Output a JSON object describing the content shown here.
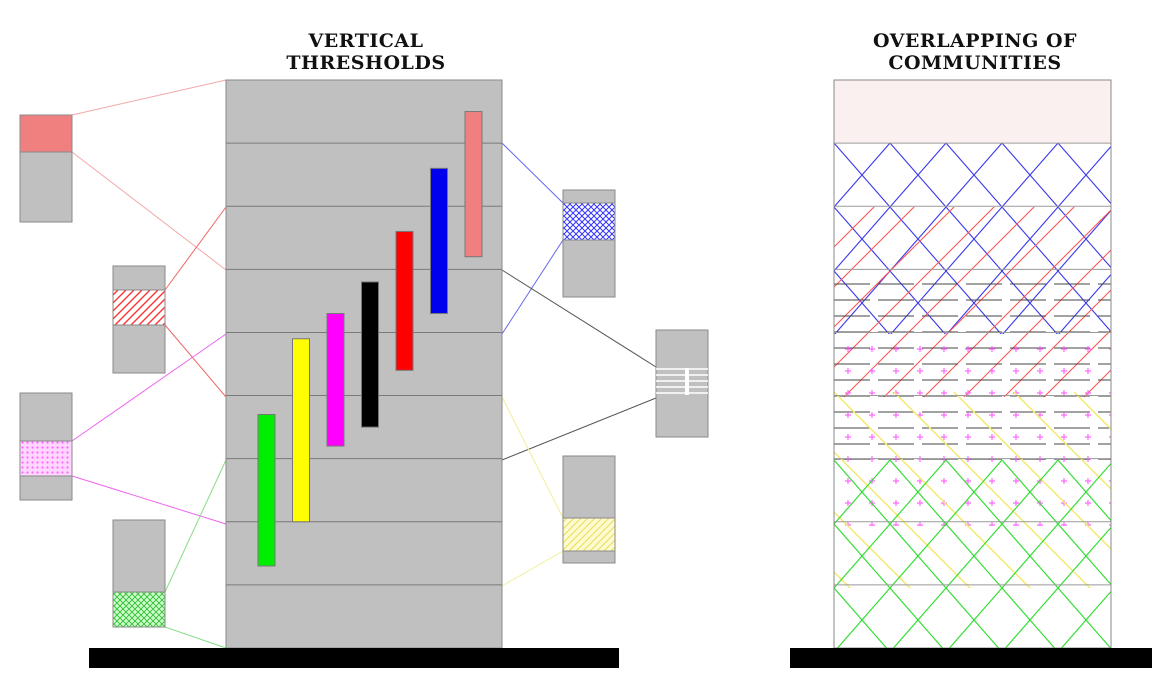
{
  "titles": {
    "vertical_line1": "VERTICAL",
    "vertical_line2": "THRESHOLDS",
    "overlap_line1": "OVERLAPPING OF",
    "overlap_line2": "COMMUNITIES"
  },
  "building": {
    "floors": 9
  },
  "vertical_bars": [
    {
      "name": "green",
      "color": "#00ee00",
      "floor_from": 1.3,
      "floor_to": 3.7
    },
    {
      "name": "yellow",
      "color": "#ffff00",
      "floor_from": 2.0,
      "floor_to": 4.9
    },
    {
      "name": "magenta",
      "color": "#ff00ff",
      "floor_from": 3.2,
      "floor_to": 5.3
    },
    {
      "name": "black",
      "color": "#000000",
      "floor_from": 3.5,
      "floor_to": 5.8
    },
    {
      "name": "red",
      "color": "#ff0000",
      "floor_from": 4.4,
      "floor_to": 6.6
    },
    {
      "name": "blue",
      "color": "#0000ee",
      "floor_from": 5.3,
      "floor_to": 7.6
    },
    {
      "name": "salmon",
      "color": "#f08080",
      "floor_from": 6.2,
      "floor_to": 8.5
    }
  ],
  "communities": [
    {
      "name": "salmon",
      "color": "#f08080",
      "pattern": "solid"
    },
    {
      "name": "red",
      "color": "#ff3333",
      "pattern": "diagonal"
    },
    {
      "name": "magenta",
      "color": "#ff66ff",
      "pattern": "dots"
    },
    {
      "name": "green",
      "color": "#33dd33",
      "pattern": "crosshatch"
    },
    {
      "name": "blue",
      "color": "#3333ff",
      "pattern": "crosshatch"
    },
    {
      "name": "yellow",
      "color": "#ffee66",
      "pattern": "diagonal"
    },
    {
      "name": "black",
      "color": "#555555",
      "pattern": "horizontal"
    }
  ],
  "colors": {
    "building_fill": "#c0c0c0",
    "floor_line": "#7a7a7a",
    "ground": "#000000",
    "overlap_top": "#fbf0f0"
  }
}
